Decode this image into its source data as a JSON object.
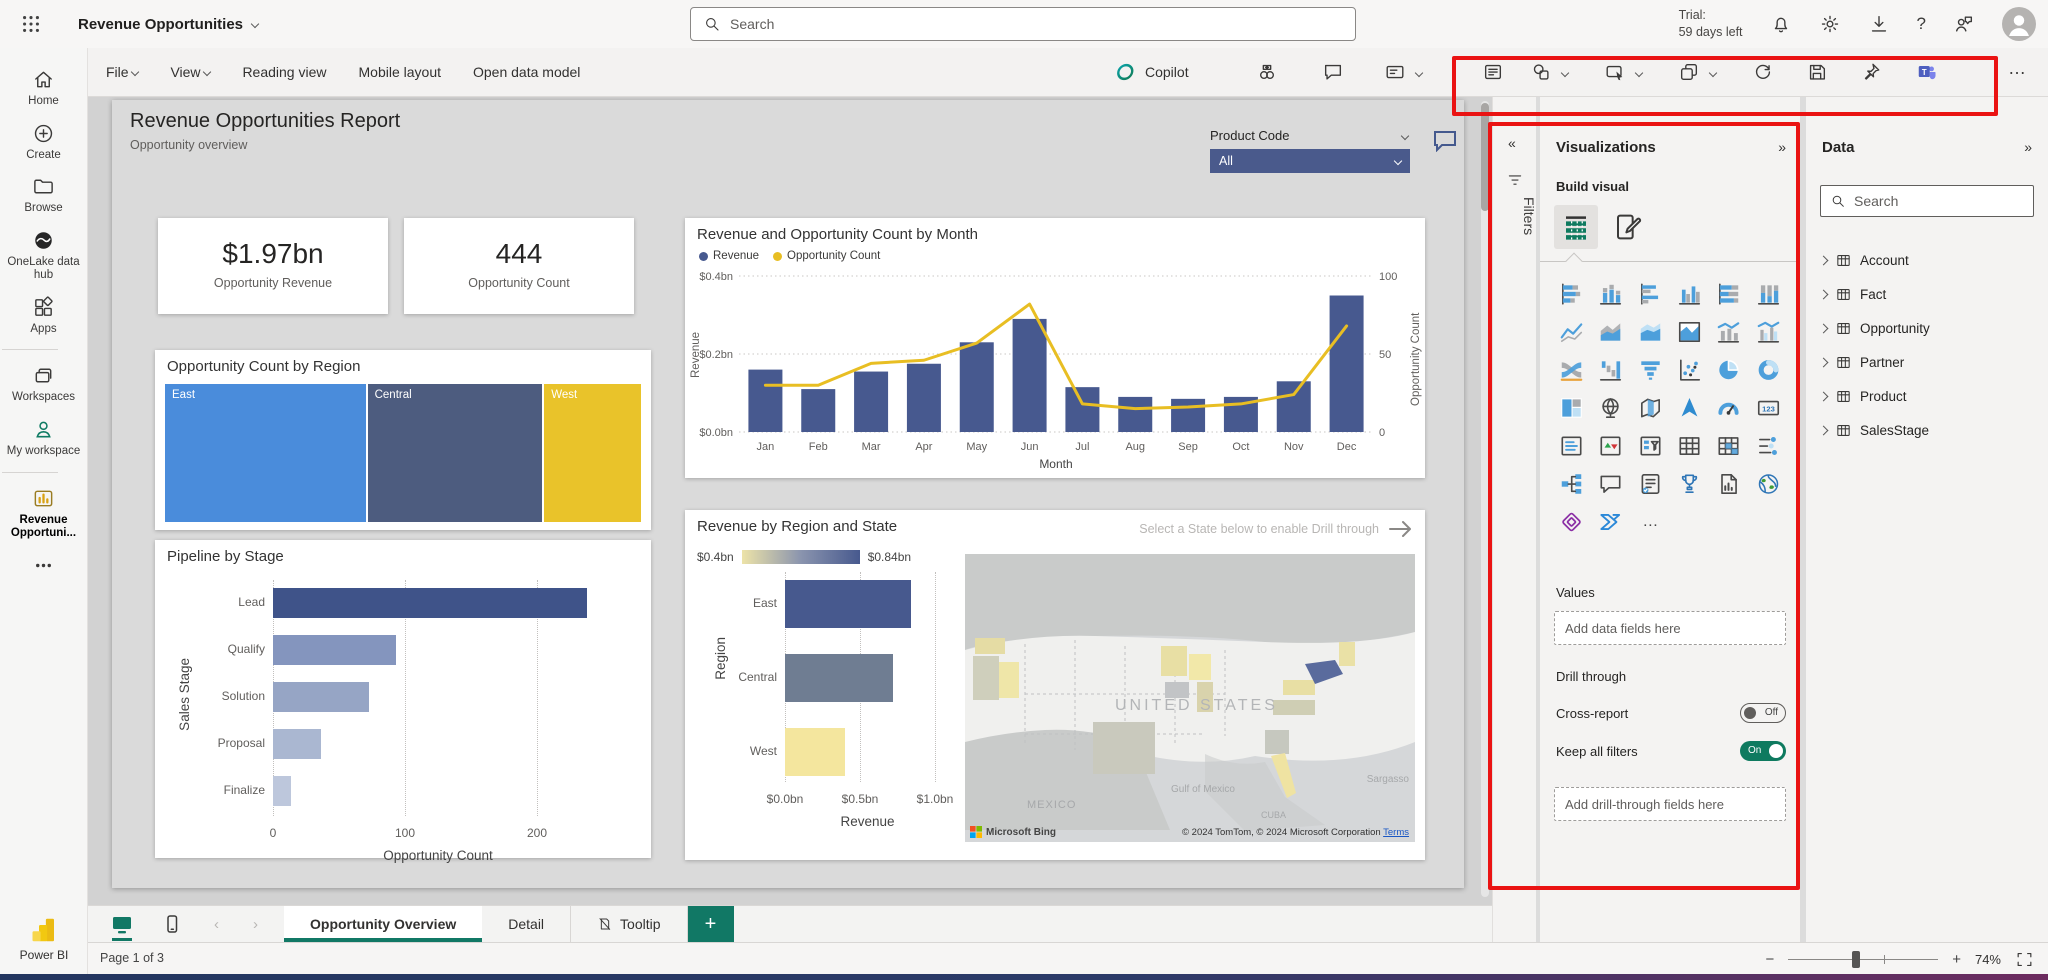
{
  "glyphs": {
    "collapse_left": "«",
    "expand_right": "»",
    "more": "…",
    "back": "‹",
    "forward": "›",
    "plus": "+",
    "minus": "−",
    "question": "?"
  },
  "topbar": {
    "app_title": "Revenue Opportunities",
    "search_placeholder": "Search",
    "trial_label": "Trial:",
    "trial_value": "59 days left"
  },
  "ribbon": {
    "file": "File",
    "view": "View",
    "reading_view": "Reading view",
    "mobile_layout": "Mobile layout",
    "open_data_model": "Open data model",
    "copilot": "Copilot"
  },
  "sidebar": {
    "items": [
      {
        "label": "Home",
        "icon": "home"
      },
      {
        "label": "Create",
        "icon": "create"
      },
      {
        "label": "Browse",
        "icon": "browse"
      },
      {
        "label": "OneLake data hub",
        "icon": "onelake"
      },
      {
        "label": "Apps",
        "icon": "apps"
      },
      {
        "label": "Workspaces",
        "icon": "workspaces",
        "divider_before": true
      },
      {
        "label": "My workspace",
        "icon": "person"
      },
      {
        "label": "Revenue Opportuni...",
        "icon": "report",
        "active": true,
        "divider_before": true
      },
      {
        "label": "",
        "icon": "dots"
      }
    ],
    "footer": "Power BI"
  },
  "report": {
    "title": "Revenue Opportunities Report",
    "subtitle": "Opportunity overview",
    "slicer_label": "Product Code",
    "slicer_value": "All"
  },
  "kpi_cards": [
    {
      "value": "$1.97bn",
      "label": "Opportunity Revenue"
    },
    {
      "value": "444",
      "label": "Opportunity Count"
    }
  ],
  "chart_data": [
    {
      "type": "treemap",
      "title": "Opportunity Count by Region",
      "categories": [
        "East",
        "Central",
        "West"
      ],
      "values": [
        42.5,
        37,
        20.5
      ],
      "values_unit": "percent_of_area_estimated",
      "colors": [
        "#4A8CDB",
        "#4D5C7F",
        "#E9C32A"
      ]
    },
    {
      "type": "bar",
      "title": "Pipeline by Stage",
      "categories": [
        "Lead",
        "Qualify",
        "Solution",
        "Proposal",
        "Finalize"
      ],
      "values": [
        238,
        93,
        73,
        36,
        14
      ],
      "xlabel": "Opportunity Count",
      "ylabel": "Sales Stage",
      "xlim": [
        0,
        250
      ],
      "xticks": [
        "0",
        "100",
        "200"
      ],
      "xtick_values": [
        0,
        100,
        200
      ],
      "colors": [
        "#3F5389",
        "#8495BE",
        "#96A5C5",
        "#AAB7D1",
        "#BDC7DC"
      ]
    },
    {
      "type": "combo",
      "title": "Revenue and Opportunity Count by Month",
      "categories": [
        "Jan",
        "Feb",
        "Mar",
        "Apr",
        "May",
        "Jun",
        "Jul",
        "Aug",
        "Sep",
        "Oct",
        "Nov",
        "Dec"
      ],
      "series": [
        {
          "name": "Revenue",
          "type": "column",
          "unit": "$bn",
          "values": [
            0.16,
            0.11,
            0.155,
            0.175,
            0.23,
            0.29,
            0.115,
            0.09,
            0.085,
            0.09,
            0.13,
            0.35
          ]
        },
        {
          "name": "Opportunity Count",
          "type": "line",
          "values": [
            30,
            30,
            44,
            46,
            57,
            82,
            18,
            15,
            16,
            18,
            24,
            68
          ]
        }
      ],
      "xlabel": "Month",
      "y_left": {
        "label": "Revenue",
        "ticks": [
          "$0.0bn",
          "$0.2bn",
          "$0.4bn"
        ],
        "max": 0.4
      },
      "y_right": {
        "label": "Opportunity Count",
        "ticks": [
          "0",
          "50",
          "100"
        ],
        "max": 100
      },
      "colors": [
        "#47598F",
        "#E8BE23"
      ],
      "legend_position": "top"
    },
    {
      "type": "bar",
      "title": "Revenue by Region and State",
      "categories": [
        "East",
        "Central",
        "West"
      ],
      "values": [
        0.84,
        0.72,
        0.4
      ],
      "xlabel": "Revenue",
      "ylabel": "Region",
      "xlim": [
        0,
        1.1
      ],
      "xticks": [
        "$0.0bn",
        "$0.5bn",
        "$1.0bn"
      ],
      "xtick_values": [
        0,
        0.5,
        1.0
      ],
      "colors": [
        "#47598E",
        "#6F7D92",
        "#F4E69E"
      ],
      "legend": {
        "min": "$0.4bn",
        "max": "$0.84bn"
      },
      "note": "Select a State below to enable Drill through"
    }
  ],
  "map": {
    "labels": {
      "country": "UNITED STATES",
      "mexico": "MEXICO",
      "gulf": "Gulf of Mexico",
      "cuba": "CUBA",
      "sargasso": "Sargasso"
    },
    "provider": "Microsoft Bing",
    "attribution": "© 2024 TomTom, © 2024 Microsoft Corporation",
    "terms": "Terms"
  },
  "filters_pane": {
    "label": "Filters"
  },
  "viz_panel": {
    "title": "Visualizations",
    "build_visual": "Build visual",
    "values_label": "Values",
    "values_placeholder": "Add data fields here",
    "drill_label": "Drill through",
    "cross_report": "Cross-report",
    "cross_state": "Off",
    "keep_filters": "Keep all filters",
    "keep_state": "On",
    "drill_placeholder": "Add drill-through fields here",
    "gallery": [
      "stacked-bar-chart",
      "stacked-column-chart",
      "clustered-bar-chart",
      "clustered-column-chart",
      "100-stacked-bar-chart",
      "100-stacked-column-chart",
      "line-chart",
      "area-chart",
      "stacked-area-chart",
      "100-stacked-area-chart",
      "line-and-stacked-column-chart",
      "line-and-clustered-column-chart",
      "ribbon-chart",
      "waterfall-chart",
      "funnel-chart",
      "scatter-chart",
      "pie-chart",
      "donut-chart",
      "treemap",
      "map",
      "filled-map",
      "azure-map",
      "gauge",
      "card",
      "multi-row-card",
      "kpi",
      "slicer",
      "table",
      "matrix",
      "key-influencers",
      "decomposition-tree",
      "qa",
      "smart-narrative",
      "metrics",
      "paginated-report",
      "arcgis-map",
      "power-apps",
      "power-automate"
    ]
  },
  "data_panel": {
    "title": "Data",
    "search_placeholder": "Search",
    "tables": [
      "Account",
      "Fact",
      "Opportunity",
      "Partner",
      "Product",
      "SalesStage"
    ]
  },
  "pages_bar": {
    "tabs": [
      {
        "label": "Opportunity Overview",
        "active": true
      },
      {
        "label": "Detail",
        "active": false
      },
      {
        "label": "Tooltip",
        "active": false,
        "icon": "hiddenpage"
      }
    ]
  },
  "statusbar": {
    "page_text": "Page 1 of 3",
    "zoom": "74%"
  }
}
